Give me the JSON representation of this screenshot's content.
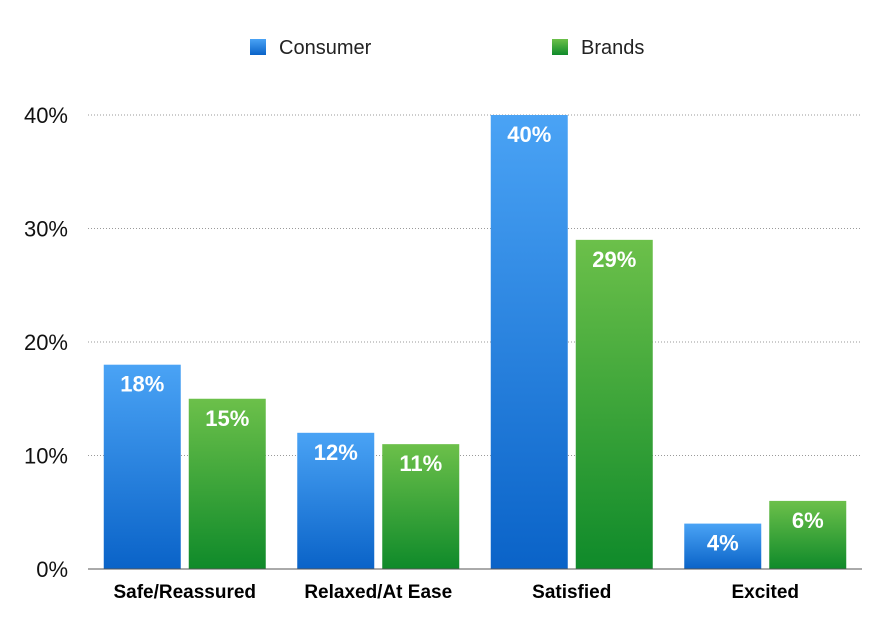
{
  "chart_data": {
    "type": "bar",
    "title": "",
    "xlabel": "",
    "ylabel": "",
    "categories": [
      "Safe/Reassured",
      "Relaxed/At Ease",
      "Satisfied",
      "Excited"
    ],
    "series": [
      {
        "name": "Consumer",
        "values": [
          18,
          12,
          40,
          4
        ],
        "color": "#2f86e0"
      },
      {
        "name": "Brands",
        "values": [
          15,
          11,
          29,
          6
        ],
        "color": "#3aa03a"
      }
    ],
    "ylim": [
      0,
      40
    ],
    "yticks": [
      0,
      10,
      20,
      30,
      40
    ],
    "value_suffix": "%",
    "grid": true,
    "legend_position": "top-center"
  }
}
